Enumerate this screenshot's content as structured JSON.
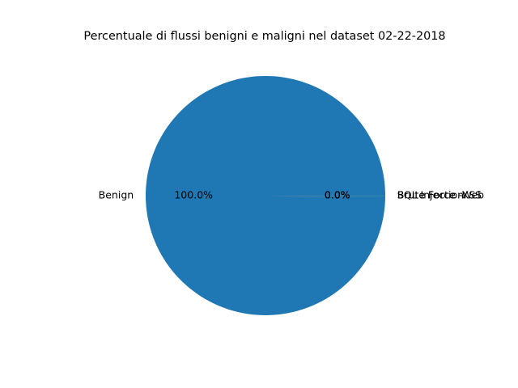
{
  "chart_data": {
    "type": "pie",
    "title": "Percentuale di flussi benigni e maligni nel dataset 02-22-2018",
    "labels": [
      "Benign",
      "Brute Force -Web",
      "Brute Force -XSS",
      "SQL Injection"
    ],
    "values": [
      99.98,
      0.01,
      0.005,
      0.005
    ],
    "pct_labels": [
      "100.0%",
      "0.0%",
      "0.0%",
      "0.0%"
    ],
    "colors": [
      "#1f77b4",
      "#ff7f0e",
      "#2ca02c",
      "#d62728"
    ],
    "start_angle_deg": 0,
    "legend": "none"
  }
}
